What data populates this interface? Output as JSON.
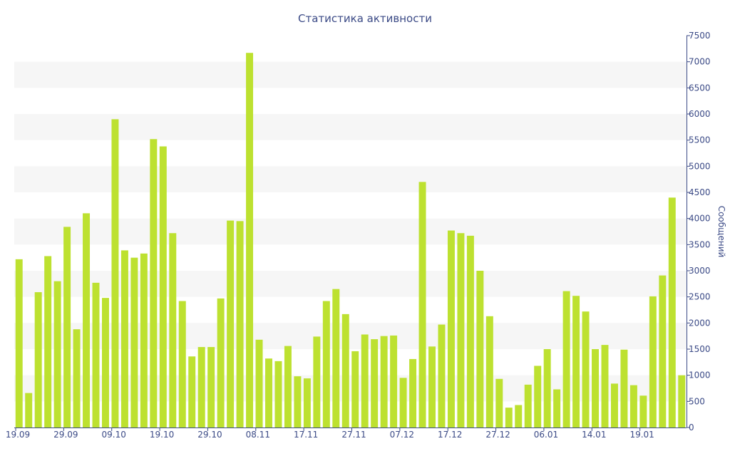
{
  "colors": {
    "bar": "#bde130",
    "band": "#f6f6f6",
    "axis": "#3b4a86",
    "text": "#3b4a86"
  },
  "chart_data": {
    "type": "bar",
    "title": "Статистика активности",
    "xlabel": "",
    "ylabel": "Сообщений",
    "ylim": [
      0,
      7500
    ],
    "yticks": [
      0,
      500,
      1000,
      1500,
      2000,
      2500,
      3000,
      3500,
      4000,
      4500,
      5000,
      5500,
      6000,
      6500,
      7000,
      7500
    ],
    "y_axis_side": "right",
    "grid": "alternating horizontal bands",
    "x_tick_labels": [
      {
        "label": "19.09",
        "index": 0
      },
      {
        "label": "29.09",
        "index": 5
      },
      {
        "label": "09.10",
        "index": 10
      },
      {
        "label": "19.10",
        "index": 15
      },
      {
        "label": "29.10",
        "index": 20
      },
      {
        "label": "08.11",
        "index": 25
      },
      {
        "label": "17.11",
        "index": 30
      },
      {
        "label": "27.11",
        "index": 35
      },
      {
        "label": "07.12",
        "index": 40
      },
      {
        "label": "17.12",
        "index": 45
      },
      {
        "label": "27.12",
        "index": 50
      },
      {
        "label": "06.01",
        "index": 55
      },
      {
        "label": "14.01",
        "index": 60
      },
      {
        "label": "19.01",
        "index": 65
      }
    ],
    "values": [
      3220,
      660,
      2590,
      3280,
      2800,
      3840,
      1880,
      4100,
      2770,
      2480,
      5900,
      3390,
      3250,
      3330,
      5520,
      5380,
      3720,
      2420,
      1360,
      1540,
      1540,
      2470,
      3960,
      3950,
      7170,
      1680,
      1320,
      1270,
      1560,
      980,
      940,
      1740,
      2420,
      2650,
      2170,
      1460,
      1780,
      1690,
      1750,
      1760,
      950,
      1310,
      4700,
      1550,
      1970,
      3770,
      3720,
      3670,
      3000,
      2130,
      930,
      380,
      430,
      820,
      1180,
      1500,
      730,
      2610,
      2520,
      2220,
      1500,
      1580,
      840,
      1490,
      810,
      610,
      2510,
      2910,
      4400,
      1000
    ]
  }
}
